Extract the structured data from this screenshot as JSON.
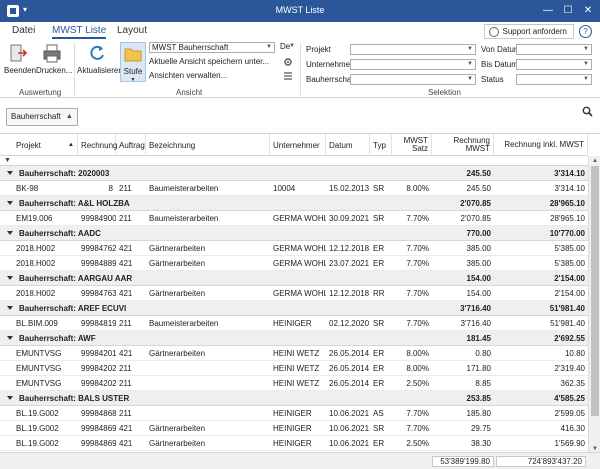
{
  "window": {
    "title": "MWST Liste",
    "quick_access": "▾",
    "minimize": "—",
    "maximize": "☐",
    "close": "✕"
  },
  "tabs": [
    {
      "label": "Datei",
      "active": false
    },
    {
      "label": "MWST Liste",
      "active": true
    },
    {
      "label": "Layout",
      "active": false
    }
  ],
  "support_label": "Support anfordern",
  "help_label": "?",
  "ribbon": {
    "auswertung": {
      "label": "Auswertung",
      "beenden": "Beenden",
      "drucken": "Drucken..."
    },
    "ansicht": {
      "label": "Ansicht",
      "aktualisieren": "Aktualisieren",
      "stufe": "Stufe",
      "view_select": "MWST Bauherrschaft",
      "save_view": "Aktuelle Ansicht speichern unter...",
      "manage_views": "Ansichten verwalten...",
      "lang": "De"
    },
    "selektion": {
      "label": "Selektion",
      "projekt": "Projekt",
      "unternehmer": "Unternehmer",
      "bauherrschaft": "Bauherrschaft",
      "von_datum": "Von Datum",
      "bis_datum": "Bis Datum",
      "status": "Status"
    }
  },
  "group_chip": "Bauherrschaft",
  "columns": [
    "Projekt",
    "Rechnung",
    "Auftrag",
    "Bezeichnung",
    "Unternehmer",
    "Datum",
    "Typ",
    "MWST Satz",
    "Rechnung MWST",
    "Rechnung inkl. MWST"
  ],
  "rows": [
    {
      "group": "Bauherrschaft: 2020003",
      "mwst": "245.50",
      "total": "3'314.10"
    },
    {
      "cells": [
        "BK-98",
        "8",
        "211",
        "Baumeisterarbeiten",
        "10004",
        "15.02.2013",
        "SR",
        "8.00%",
        "245.50",
        "3'314.10"
      ]
    },
    {
      "group": "Bauherrschaft: A&L HOLZBA",
      "mwst": "2'070.85",
      "total": "28'965.10"
    },
    {
      "cells": [
        "EM19.006",
        "99984900",
        "211",
        "Baumeisterarbeiten",
        "GERMA WOHL",
        "30.09.2021",
        "SR",
        "7.70%",
        "2'070.85",
        "28'965.10"
      ]
    },
    {
      "group": "Bauherrschaft: AADC",
      "mwst": "770.00",
      "total": "10'770.00"
    },
    {
      "cells": [
        "2018.H002",
        "99984762",
        "421",
        "Gärtnerarbeiten",
        "GERMA WOHL",
        "12.12.2018",
        "ER",
        "7.70%",
        "385.00",
        "5'385.00"
      ]
    },
    {
      "cells": [
        "2018.H002",
        "99984889",
        "421",
        "Gärtnerarbeiten",
        "GERMA WOHL",
        "23.07.2021",
        "ER",
        "7.70%",
        "385.00",
        "5'385.00"
      ]
    },
    {
      "group": "Bauherrschaft: AARGAU AAR",
      "mwst": "154.00",
      "total": "2'154.00"
    },
    {
      "cells": [
        "2018.H002",
        "99984763",
        "421",
        "Gärtnerarbeiten",
        "GERMA WOHL",
        "12.12.2018",
        "RR",
        "7.70%",
        "154.00",
        "2'154.00"
      ]
    },
    {
      "group": "Bauherrschaft: AREF ECUVI",
      "mwst": "3'716.40",
      "total": "51'981.40"
    },
    {
      "cells": [
        "BL.BIM.009",
        "99984819",
        "211",
        "Baumeisterarbeiten",
        "HEINIGER",
        "02.12.2020",
        "SR",
        "7.70%",
        "3'716.40",
        "51'981.40"
      ]
    },
    {
      "group": "Bauherrschaft: AWF",
      "mwst": "181.45",
      "total": "2'692.55"
    },
    {
      "cells": [
        "EMUNTVSG",
        "99984201",
        "421",
        "Gärtnerarbeiten",
        "HEINI WETZ",
        "26.05.2014",
        "ER",
        "8.00%",
        "0.80",
        "10.80"
      ]
    },
    {
      "cells": [
        "EMUNTVSG",
        "99984202",
        "211",
        "",
        "HEINI WETZ",
        "26.05.2014",
        "ER",
        "8.00%",
        "171.80",
        "2'319.40"
      ]
    },
    {
      "cells": [
        "EMUNTVSG",
        "99984202",
        "211",
        "",
        "HEINI WETZ",
        "26.05.2014",
        "ER",
        "2.50%",
        "8.85",
        "362.35"
      ]
    },
    {
      "group": "Bauherrschaft: BALS USTER",
      "mwst": "253.85",
      "total": "4'585.25"
    },
    {
      "cells": [
        "BL.19.G002",
        "99984868",
        "211",
        "",
        "HEINIGER",
        "10.06.2021",
        "AS",
        "7.70%",
        "185.80",
        "2'599.05"
      ]
    },
    {
      "cells": [
        "BL.19.G002",
        "99984869",
        "421",
        "Gärtnerarbeiten",
        "HEINIGER",
        "10.06.2021",
        "SR",
        "7.70%",
        "29.75",
        "416.30"
      ]
    },
    {
      "cells": [
        "BL.19.G002",
        "99984869",
        "421",
        "Gärtnerarbeiten",
        "HEINIGER",
        "10.06.2021",
        "ER",
        "2.50%",
        "38.30",
        "1'569.90"
      ]
    }
  ],
  "totals": {
    "mwst": "53'389'199.80",
    "total": "724'893'437.20"
  },
  "colors": {
    "title_bar": "#2b579a",
    "group_row": "#efefef"
  }
}
